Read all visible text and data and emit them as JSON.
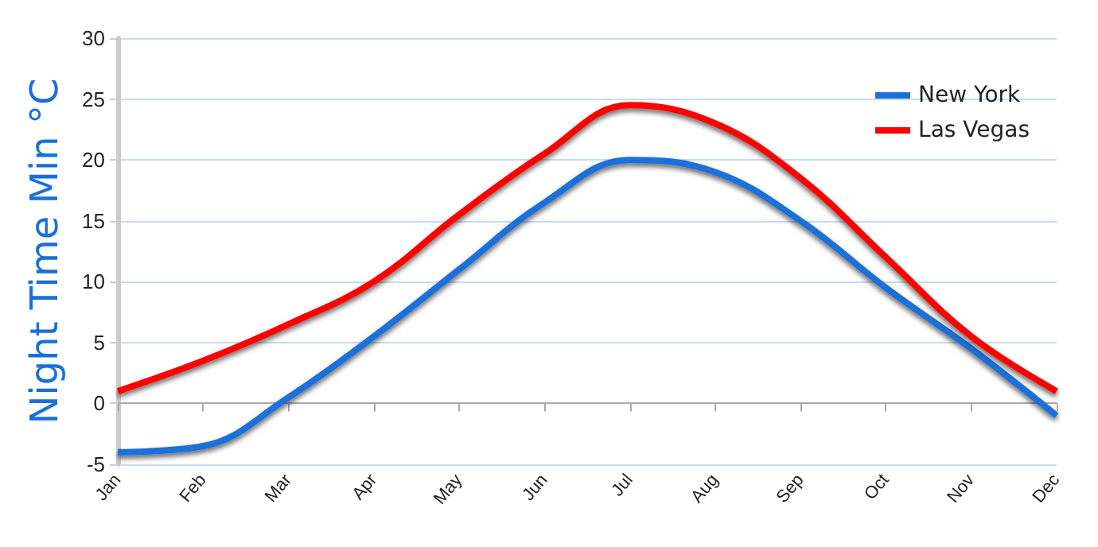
{
  "chart_data": {
    "type": "line",
    "ylabel": "Night Time Min °C",
    "categories": [
      "Jan",
      "Feb",
      "Mar",
      "Apr",
      "May",
      "Jun",
      "Jul",
      "Aug",
      "Sep",
      "Oct",
      "Nov",
      "Dec"
    ],
    "series": [
      {
        "name": "New York",
        "color": "#1a6fd9",
        "values": [
          -4,
          -3.5,
          0.5,
          5.5,
          11,
          16.5,
          20,
          19,
          15,
          9.5,
          4.5,
          -1
        ]
      },
      {
        "name": "Las Vegas",
        "color": "#ff0000",
        "values": [
          1,
          3.5,
          6.5,
          10,
          15.5,
          20.5,
          24.5,
          23,
          18.5,
          12,
          5.5,
          1
        ]
      }
    ],
    "ylim": [
      -5,
      30
    ],
    "yticks": [
      -5,
      0,
      5,
      10,
      15,
      20,
      25,
      30
    ],
    "grid": "y",
    "legend": "top right",
    "marker": "none"
  }
}
